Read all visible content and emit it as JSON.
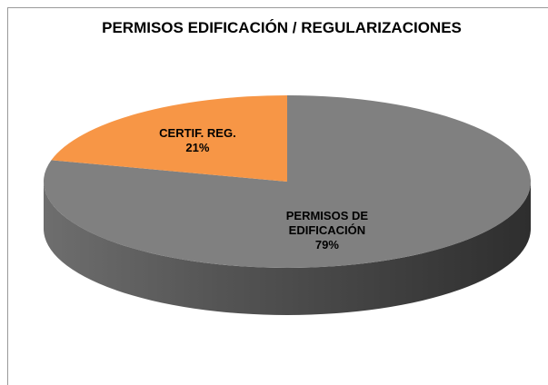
{
  "chart_data": {
    "type": "pie3d",
    "title": "PERMISOS EDIFICACIÓN / REGULARIZACIONES",
    "categories": [
      "PERMISOS DE EDIFICACIÓN",
      "CERTIF. REG."
    ],
    "values": [
      79,
      21
    ],
    "value_labels": [
      "79%",
      "21%"
    ],
    "colors": [
      "#808080",
      "#f79646"
    ]
  }
}
